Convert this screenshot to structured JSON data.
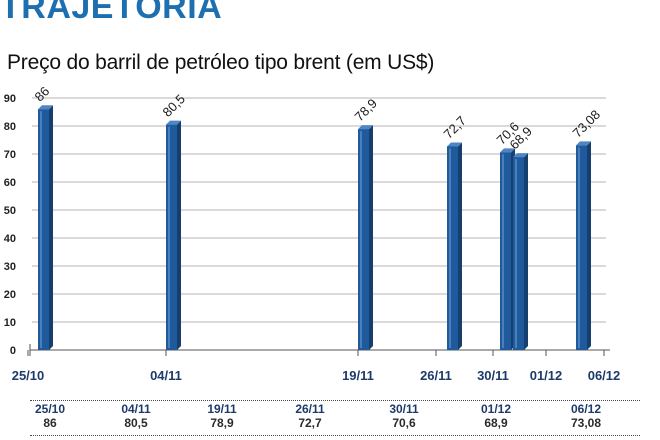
{
  "header": {
    "title": "TRAJETÓRIA",
    "subtitle": "Preço do barril de petróleo tipo brent (em US$)"
  },
  "colors": {
    "title": "#1e6fb0",
    "bar_front": "#1e5a9c",
    "bar_side": "#163f70",
    "bar_top": "#4f86c2",
    "grid": "#7a7a7a"
  },
  "chart_data": {
    "type": "bar",
    "title": "Preço do barril de petróleo tipo brent (em US$)",
    "xlabel": "",
    "ylabel": "",
    "ylim": [
      0,
      90
    ],
    "yticks": [
      "0",
      "10",
      "20",
      "30",
      "40",
      "50",
      "60",
      "70",
      "80",
      "90"
    ],
    "grid": true,
    "bars": [
      {
        "date": "25/10",
        "value": 86,
        "label": "86"
      },
      {
        "date": "04/11",
        "value": 80.5,
        "label": "80,5"
      },
      {
        "date": "19/11",
        "value": 78.9,
        "label": "78,9"
      },
      {
        "date": "26/11",
        "value": 72.7,
        "label": "72,7"
      },
      {
        "date": "30/11",
        "value": 70.6,
        "label": "70,6"
      },
      {
        "date": "01/12",
        "value": 68.9,
        "label": "68,9"
      },
      {
        "date": "06/12",
        "value": 73.08,
        "label": "73,08"
      }
    ],
    "x_axis_labels": [
      "25/10",
      "04/11",
      "19/11",
      "26/11",
      "30/11",
      "01/12",
      "06/12"
    ]
  },
  "table": {
    "dates": [
      "25/10",
      "04/11",
      "19/11",
      "26/11",
      "30/11",
      "01/12",
      "06/12"
    ],
    "values": [
      "86",
      "80,5",
      "78,9",
      "72,7",
      "70,6",
      "68,9",
      "73,08"
    ]
  }
}
